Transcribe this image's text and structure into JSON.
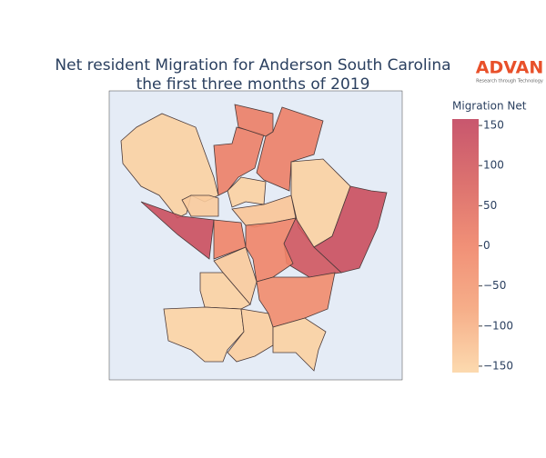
{
  "chart_data": {
    "type": "choropleth",
    "title": [
      "Net resident Migration for Anderson South Carolina",
      "the first three months of 2019"
    ],
    "colorbar_title": "Migration Net",
    "clim": [
      -158,
      158
    ],
    "cticks": [
      {
        "value": -150,
        "label": "−150"
      },
      {
        "value": -100,
        "label": "−100"
      },
      {
        "value": -50,
        "label": "−50"
      },
      0,
      50,
      100,
      150
    ],
    "colorscale": [
      "#fcd6a6",
      "#f5a57c",
      "#ef8468",
      "#d8625f",
      "#c2445e"
    ],
    "values": [
      -150,
      130,
      -140,
      10,
      15,
      10,
      -150,
      -130,
      -150,
      130,
      110,
      0,
      0,
      -140,
      -150,
      -20,
      -155,
      -145,
      -150
    ]
  },
  "logo": {
    "name": "ADVAN",
    "tagline": "Research through Technology"
  }
}
